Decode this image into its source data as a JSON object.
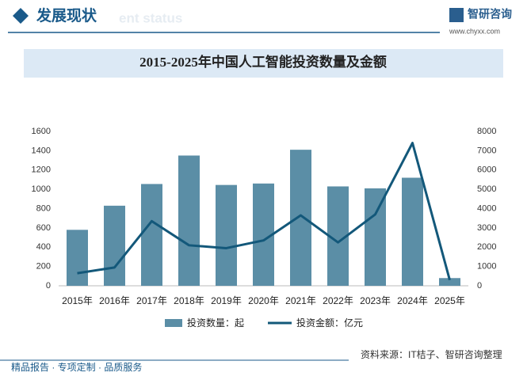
{
  "header": {
    "title": "发展现状",
    "watermark": "ent status"
  },
  "logo": {
    "name": "智研咨询",
    "url": "www.chyxx.com"
  },
  "chart_data": {
    "type": "combo",
    "title": "2015-2025年中国人工智能投资数量及金额",
    "categories": [
      "2015年",
      "2016年",
      "2017年",
      "2018年",
      "2019年",
      "2020年",
      "2021年",
      "2022年",
      "2023年",
      "2024年",
      "2025年"
    ],
    "series": [
      {
        "name": "投资数量：起",
        "type": "bar",
        "color": "#5b8ea6",
        "values": [
          580,
          830,
          1055,
          1350,
          1045,
          1060,
          1410,
          1030,
          1010,
          1120,
          80
        ]
      },
      {
        "name": "投资金额：亿元",
        "type": "line",
        "axis": "y2",
        "color": "#13587a",
        "values": [
          650,
          950,
          3350,
          2100,
          1950,
          2350,
          3650,
          2250,
          3700,
          7400,
          300
        ]
      }
    ],
    "ylim": [
      0,
      1600
    ],
    "yticks": [
      0,
      200,
      400,
      600,
      800,
      1000,
      1200,
      1400,
      1600
    ],
    "y2lim": [
      0,
      8000
    ],
    "y2ticks": [
      0,
      1000,
      2000,
      3000,
      4000,
      5000,
      6000,
      7000,
      8000
    ],
    "legend": "bottom"
  },
  "source": "资料来源：IT桔子、智研咨询整理",
  "footer": "精品报告 · 专项定制 · 品质服务"
}
